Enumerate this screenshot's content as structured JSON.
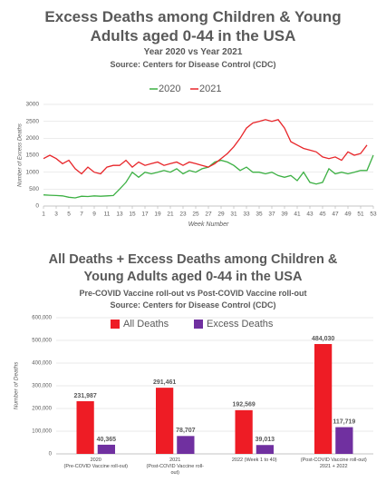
{
  "chart_data": [
    {
      "type": "line",
      "title": "Excess Deaths among Children & Young Adults aged 0-44 in the USA",
      "subtitle": "Year 2020 vs Year 2021",
      "source": "Source: Centers for Disease Control (CDC)",
      "x_label": "Week Number",
      "y_label": "Number of Excess Deaths",
      "x": [
        1,
        2,
        3,
        4,
        5,
        6,
        7,
        8,
        9,
        10,
        11,
        12,
        13,
        14,
        15,
        16,
        17,
        18,
        19,
        20,
        21,
        22,
        23,
        24,
        25,
        26,
        27,
        28,
        29,
        30,
        31,
        32,
        33,
        34,
        35,
        36,
        37,
        38,
        39,
        40,
        41,
        42,
        43,
        44,
        45,
        46,
        47,
        48,
        49,
        50,
        51,
        52,
        53
      ],
      "xlim": [
        1,
        53
      ],
      "xticks": [
        1,
        3,
        5,
        7,
        9,
        11,
        13,
        15,
        17,
        19,
        21,
        23,
        25,
        27,
        29,
        31,
        33,
        35,
        37,
        39,
        41,
        43,
        45,
        47,
        49,
        51,
        53
      ],
      "ylim": [
        0,
        3000
      ],
      "yticks": [
        0,
        500,
        1000,
        1500,
        2000,
        2500,
        3000
      ],
      "grid": true,
      "legend": "top",
      "series": [
        {
          "name": "2020",
          "color": "#3cb043",
          "values": [
            330,
            320,
            310,
            300,
            260,
            240,
            290,
            280,
            300,
            290,
            300,
            310,
            500,
            700,
            1000,
            850,
            1000,
            950,
            1000,
            1050,
            1000,
            1100,
            950,
            1050,
            1000,
            1100,
            1150,
            1300,
            1350,
            1300,
            1200,
            1050,
            1150,
            1000,
            1000,
            950,
            1000,
            900,
            850,
            900,
            750,
            1000,
            700,
            650,
            700,
            1100,
            950,
            1000,
            950,
            1000,
            1050,
            1050,
            1500
          ]
        },
        {
          "name": "2021",
          "color": "#e8262a",
          "values": [
            1400,
            1500,
            1400,
            1250,
            1350,
            1100,
            950,
            1150,
            1000,
            950,
            1150,
            1200,
            1200,
            1350,
            1150,
            1300,
            1200,
            1250,
            1300,
            1200,
            1250,
            1300,
            1200,
            1300,
            1250,
            1200,
            1150,
            1250,
            1400,
            1550,
            1750,
            2000,
            2300,
            2450,
            2500,
            2550,
            2500,
            2550,
            2300,
            1900,
            1800,
            1700,
            1650,
            1600,
            1450,
            1400,
            1450,
            1350,
            1600,
            1500,
            1550,
            1800,
            null
          ]
        }
      ]
    },
    {
      "type": "bar",
      "title": "All Deaths + Excess Deaths among Children & Young Adults aged 0-44 in the USA",
      "subtitle": "Pre-COVID Vaccine roll-out vs Post-COVID Vaccine roll-out",
      "source": "Source: Centers for Disease Control (CDC)",
      "y_label": "Number of Deaths",
      "categories": [
        "2020\n(Pre-COVID Vaccine roll-out)",
        "2021\n(Post-COVID Vaccine roll-\nout)",
        "2022 (Week 1 to 40)",
        "(Post-COVID Vaccine roll-out)\n2021 + 2022"
      ],
      "ylim": [
        0,
        600000
      ],
      "yticks": [
        0,
        {
          "value": 100000,
          "label": "100,000"
        },
        {
          "value": 200000,
          "label": "200,000"
        },
        {
          "value": 300000,
          "label": "300,000"
        },
        {
          "value": 400000,
          "label": "400,000"
        },
        {
          "value": 500000,
          "label": "500,000"
        },
        {
          "value": 600000,
          "label": "600,000"
        }
      ],
      "grid": true,
      "legend": "top",
      "series": [
        {
          "name": "All Deaths",
          "color": "#ee1c25",
          "values": [
            231987,
            291461,
            192569,
            484030
          ],
          "value_labels": [
            "231,987",
            "291,461",
            "192,569",
            "484,030"
          ]
        },
        {
          "name": "Excess Deaths",
          "color": "#7030a0",
          "values": [
            40365,
            78707,
            39013,
            117719
          ],
          "value_labels": [
            "40,365",
            "78,707",
            "39,013",
            "117,719"
          ]
        }
      ]
    }
  ]
}
